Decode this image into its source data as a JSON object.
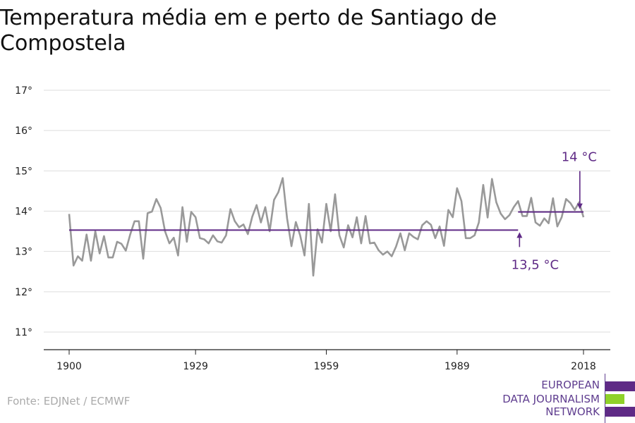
{
  "chart_data": {
    "type": "line",
    "title": "Temperatura média em e perto de Santiago de Compostela",
    "xlabel": "",
    "ylabel": "",
    "xlim": [
      1900,
      2018
    ],
    "ylim": [
      11,
      17
    ],
    "x_ticks": [
      "1900",
      "1929",
      "1959",
      "1989",
      "2018"
    ],
    "y_ticks": [
      "11°",
      "12°",
      "13°",
      "14°",
      "15°",
      "16°",
      "17°"
    ],
    "grid": true,
    "series": [
      {
        "color": "#999999",
        "x": [
          1900,
          1901,
          1902,
          1903,
          1904,
          1905,
          1906,
          1907,
          1908,
          1909,
          1910,
          1911,
          1912,
          1913,
          1914,
          1915,
          1916,
          1917,
          1918,
          1919,
          1920,
          1921,
          1922,
          1923,
          1924,
          1925,
          1926,
          1927,
          1928,
          1929,
          1930,
          1931,
          1932,
          1933,
          1934,
          1935,
          1936,
          1937,
          1938,
          1939,
          1940,
          1941,
          1942,
          1943,
          1944,
          1945,
          1946,
          1947,
          1948,
          1949,
          1950,
          1951,
          1952,
          1953,
          1954,
          1955,
          1956,
          1957,
          1958,
          1959,
          1960,
          1961,
          1962,
          1963,
          1964,
          1965,
          1966,
          1967,
          1968,
          1969,
          1970,
          1971,
          1972,
          1973,
          1974,
          1975,
          1976,
          1977,
          1978,
          1979,
          1980,
          1981,
          1982,
          1983,
          1984,
          1985,
          1986,
          1987,
          1988,
          1989,
          1990,
          1991,
          1992,
          1993,
          1994,
          1995,
          1996,
          1997,
          1998,
          1999,
          2000,
          2001,
          2002,
          2003,
          2004,
          2005,
          2006,
          2007,
          2008,
          2009,
          2010,
          2011,
          2012,
          2013,
          2014,
          2015,
          2016,
          2017,
          2018
        ],
        "values": [
          13.93,
          12.65,
          12.88,
          12.77,
          13.42,
          12.77,
          13.5,
          12.95,
          13.38,
          12.85,
          12.85,
          13.24,
          13.19,
          13.02,
          13.42,
          13.75,
          13.75,
          12.82,
          13.95,
          13.99,
          14.3,
          14.08,
          13.5,
          13.2,
          13.34,
          12.9,
          14.1,
          13.24,
          13.98,
          13.85,
          13.33,
          13.3,
          13.2,
          13.4,
          13.25,
          13.22,
          13.4,
          14.05,
          13.75,
          13.6,
          13.67,
          13.43,
          13.86,
          14.15,
          13.72,
          14.1,
          13.5,
          14.28,
          14.47,
          14.82,
          13.82,
          13.13,
          13.73,
          13.4,
          12.9,
          14.18,
          12.4,
          13.55,
          13.22,
          14.18,
          13.5,
          14.42,
          13.4,
          13.1,
          13.65,
          13.35,
          13.85,
          13.2,
          13.88,
          13.2,
          13.22,
          13.03,
          12.92,
          13.0,
          12.88,
          13.12,
          13.45,
          13.03,
          13.45,
          13.36,
          13.3,
          13.65,
          13.75,
          13.66,
          13.33,
          13.62,
          13.14,
          14.03,
          13.85,
          14.57,
          14.25,
          13.33,
          13.33,
          13.4,
          13.72,
          14.65,
          13.84,
          14.8,
          14.22,
          13.94,
          13.8,
          13.9,
          14.1,
          14.25,
          13.88,
          13.88,
          14.33,
          13.72,
          13.64,
          13.82,
          13.7,
          14.32,
          13.62,
          13.85,
          14.3,
          14.2,
          14.03,
          14.22,
          13.85
        ]
      },
      {
        "color": "#5f2a86",
        "x": [
          1900,
          2003
        ],
        "values": [
          13.53,
          13.53
        ]
      },
      {
        "color": "#5f2a86",
        "x": [
          2003,
          2018
        ],
        "values": [
          13.98,
          13.98
        ]
      }
    ],
    "annotations": [
      {
        "text": "13,5 °C",
        "x": 2003,
        "y": 13.53,
        "color": "#5f2a86"
      },
      {
        "text": "14 °C",
        "x": 2017,
        "y": 13.98,
        "color": "#5f2a86"
      }
    ]
  },
  "source": "Fonte: EDJNet / ECMWF",
  "logo": {
    "lines": [
      "EUROPEAN",
      "DATA JOURNALISM",
      "NETWORK"
    ],
    "colors": [
      "#5f2a86",
      "#8fd129",
      "#5f2a86"
    ]
  }
}
